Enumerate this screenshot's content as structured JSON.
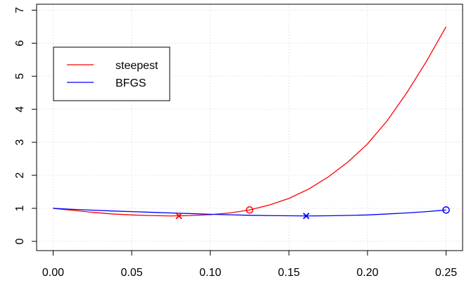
{
  "chart_data": {
    "type": "line",
    "title": "",
    "xlabel": "",
    "ylabel": "",
    "xlim": [
      -0.0105,
      0.2605
    ],
    "ylim": [
      -0.28,
      7.18
    ],
    "x_ticks": [
      0.0,
      0.05,
      0.1,
      0.15,
      0.2,
      0.25
    ],
    "x_tick_labels": [
      "0.00",
      "0.05",
      "0.10",
      "0.15",
      "0.20",
      "0.25"
    ],
    "y_ticks": [
      0,
      1,
      2,
      3,
      4,
      5,
      6,
      7
    ],
    "y_tick_labels": [
      "0",
      "1",
      "2",
      "3",
      "4",
      "5",
      "6",
      "7"
    ],
    "grid": true,
    "legend_position": "top-left",
    "series": [
      {
        "name": "steepest",
        "color": "#ff0000",
        "x": [
          0.0,
          0.0125,
          0.025,
          0.0375,
          0.05,
          0.0625,
          0.075,
          0.0875,
          0.1,
          0.1125,
          0.125,
          0.1375,
          0.15,
          0.1625,
          0.175,
          0.1875,
          0.2,
          0.2125,
          0.225,
          0.2375,
          0.25
        ],
        "y": [
          1.0,
          0.94,
          0.88,
          0.83,
          0.8,
          0.78,
          0.77,
          0.78,
          0.81,
          0.86,
          0.95,
          1.1,
          1.3,
          1.58,
          1.95,
          2.4,
          2.95,
          3.65,
          4.5,
          5.45,
          6.5
        ]
      },
      {
        "name": "BFGS",
        "color": "#0000ff",
        "x": [
          0.0,
          0.0125,
          0.025,
          0.0375,
          0.05,
          0.0625,
          0.075,
          0.0875,
          0.1,
          0.1125,
          0.125,
          0.1375,
          0.15,
          0.1625,
          0.175,
          0.1875,
          0.2,
          0.2125,
          0.225,
          0.2375,
          0.25
        ],
        "y": [
          1.0,
          0.97,
          0.945,
          0.92,
          0.9,
          0.88,
          0.86,
          0.84,
          0.82,
          0.805,
          0.79,
          0.78,
          0.775,
          0.77,
          0.775,
          0.785,
          0.8,
          0.83,
          0.86,
          0.9,
          0.95
        ]
      }
    ],
    "markers": [
      {
        "series": "steepest",
        "shape": "x",
        "color": "#ff0000",
        "x": 0.08,
        "y": 0.77
      },
      {
        "series": "steepest",
        "shape": "circle",
        "color": "#ff0000",
        "x": 0.125,
        "y": 0.95
      },
      {
        "series": "BFGS",
        "shape": "x",
        "color": "#0000ff",
        "x": 0.161,
        "y": 0.77
      },
      {
        "series": "BFGS",
        "shape": "circle",
        "color": "#0000ff",
        "x": 0.25,
        "y": 0.95
      }
    ]
  }
}
